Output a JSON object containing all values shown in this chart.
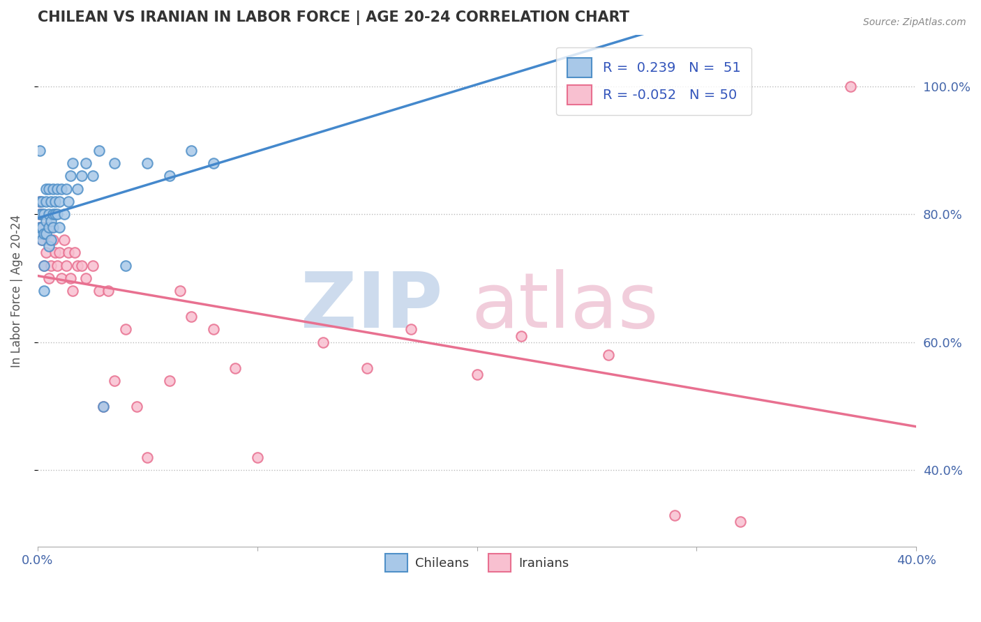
{
  "title": "CHILEAN VS IRANIAN IN LABOR FORCE | AGE 20-24 CORRELATION CHART",
  "source_text": "Source: ZipAtlas.com",
  "ylabel": "In Labor Force | Age 20-24",
  "xlim": [
    0.0,
    0.4
  ],
  "ylim": [
    0.28,
    1.08
  ],
  "x_tick_positions": [
    0.0,
    0.1,
    0.2,
    0.3,
    0.4
  ],
  "x_tick_labels": [
    "0.0%",
    "",
    "",
    "",
    "40.0%"
  ],
  "y_tick_positions": [
    0.4,
    0.6,
    0.8,
    1.0
  ],
  "y_tick_labels": [
    "40.0%",
    "60.0%",
    "80.0%",
    "100.0%"
  ],
  "R_chilean": 0.239,
  "N_chilean": 51,
  "R_iranian": -0.052,
  "N_iranian": 50,
  "chilean_fill": "#A8C8E8",
  "chilean_edge": "#5090C8",
  "iranian_fill": "#F8C0D0",
  "iranian_edge": "#E87090",
  "chilean_line_color": "#4488CC",
  "iranian_line_color": "#E87090",
  "watermark_zip_color": "#C8D8EC",
  "watermark_atlas_color": "#F0C8D8",
  "chilean_x": [
    0.001,
    0.001,
    0.001,
    0.001,
    0.001,
    0.002,
    0.002,
    0.002,
    0.002,
    0.003,
    0.003,
    0.003,
    0.003,
    0.004,
    0.004,
    0.004,
    0.004,
    0.005,
    0.005,
    0.005,
    0.005,
    0.006,
    0.006,
    0.006,
    0.007,
    0.007,
    0.007,
    0.008,
    0.008,
    0.009,
    0.009,
    0.01,
    0.01,
    0.011,
    0.012,
    0.013,
    0.014,
    0.015,
    0.016,
    0.018,
    0.02,
    0.022,
    0.025,
    0.028,
    0.03,
    0.035,
    0.04,
    0.05,
    0.06,
    0.07,
    0.08
  ],
  "chilean_y": [
    0.77,
    0.78,
    0.8,
    0.82,
    0.9,
    0.76,
    0.78,
    0.8,
    0.82,
    0.68,
    0.72,
    0.77,
    0.8,
    0.77,
    0.79,
    0.82,
    0.84,
    0.75,
    0.78,
    0.8,
    0.84,
    0.76,
    0.79,
    0.82,
    0.78,
    0.8,
    0.84,
    0.8,
    0.82,
    0.8,
    0.84,
    0.78,
    0.82,
    0.84,
    0.8,
    0.84,
    0.82,
    0.86,
    0.88,
    0.84,
    0.86,
    0.88,
    0.86,
    0.9,
    0.5,
    0.88,
    0.72,
    0.88,
    0.86,
    0.9,
    0.88
  ],
  "iranian_x": [
    0.001,
    0.001,
    0.001,
    0.002,
    0.002,
    0.003,
    0.003,
    0.004,
    0.004,
    0.005,
    0.005,
    0.006,
    0.006,
    0.007,
    0.008,
    0.009,
    0.01,
    0.011,
    0.012,
    0.013,
    0.014,
    0.015,
    0.016,
    0.017,
    0.018,
    0.02,
    0.022,
    0.025,
    0.028,
    0.03,
    0.032,
    0.035,
    0.04,
    0.045,
    0.05,
    0.06,
    0.065,
    0.07,
    0.08,
    0.09,
    0.1,
    0.13,
    0.15,
    0.17,
    0.2,
    0.22,
    0.26,
    0.29,
    0.32,
    0.37
  ],
  "iranian_y": [
    0.78,
    0.8,
    0.82,
    0.76,
    0.8,
    0.72,
    0.78,
    0.74,
    0.78,
    0.7,
    0.76,
    0.72,
    0.78,
    0.76,
    0.74,
    0.72,
    0.74,
    0.7,
    0.76,
    0.72,
    0.74,
    0.7,
    0.68,
    0.74,
    0.72,
    0.72,
    0.7,
    0.72,
    0.68,
    0.5,
    0.68,
    0.54,
    0.62,
    0.5,
    0.42,
    0.54,
    0.68,
    0.64,
    0.62,
    0.56,
    0.42,
    0.6,
    0.56,
    0.62,
    0.55,
    0.61,
    0.58,
    0.33,
    0.32,
    1.0
  ]
}
